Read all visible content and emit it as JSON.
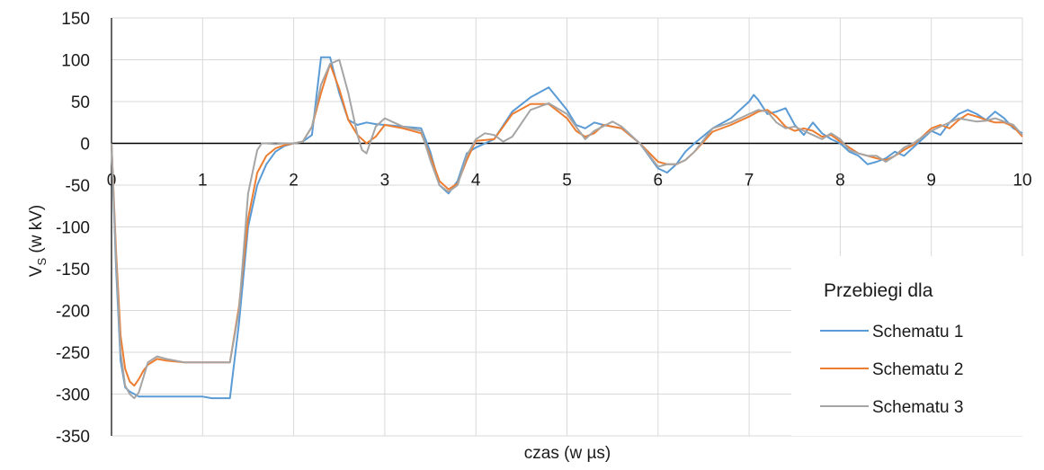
{
  "chart_data": {
    "type": "line",
    "title": "",
    "xlabel": "czas (w µs)",
    "ylabel_main": "V",
    "ylabel_sub": "S",
    "ylabel_rest": " (w kV)",
    "xlim": [
      0,
      10
    ],
    "ylim": [
      -350,
      150
    ],
    "x_ticks": [
      0,
      1,
      2,
      3,
      4,
      5,
      6,
      7,
      8,
      9,
      10
    ],
    "y_ticks": [
      150,
      100,
      50,
      0,
      -50,
      -100,
      -150,
      -200,
      -250,
      -300,
      -350
    ],
    "grid": true,
    "legend": {
      "title": "Przebiegi dla",
      "placement": "bottom-right"
    },
    "series": [
      {
        "name": "Schematu 1",
        "color": "#5b9bd5",
        "x": [
          0,
          0.05,
          0.1,
          0.15,
          0.2,
          0.3,
          0.5,
          0.8,
          1.0,
          1.1,
          1.2,
          1.3,
          1.4,
          1.5,
          1.6,
          1.7,
          1.8,
          1.9,
          2.0,
          2.1,
          2.2,
          2.3,
          2.4,
          2.5,
          2.6,
          2.7,
          2.8,
          2.9,
          3.0,
          3.2,
          3.4,
          3.5,
          3.6,
          3.7,
          3.8,
          3.9,
          4.0,
          4.2,
          4.4,
          4.6,
          4.8,
          5.0,
          5.1,
          5.2,
          5.3,
          5.4,
          5.6,
          5.8,
          6.0,
          6.1,
          6.2,
          6.3,
          6.4,
          6.6,
          6.8,
          7.0,
          7.05,
          7.1,
          7.2,
          7.3,
          7.4,
          7.5,
          7.6,
          7.7,
          7.8,
          7.9,
          8.0,
          8.1,
          8.2,
          8.3,
          8.4,
          8.5,
          8.6,
          8.7,
          8.8,
          9.0,
          9.1,
          9.2,
          9.3,
          9.4,
          9.5,
          9.6,
          9.7,
          9.8,
          9.9,
          10.0
        ],
        "y": [
          0,
          -150,
          -260,
          -292,
          -297,
          -303,
          -303,
          -303,
          -303,
          -305,
          -305,
          -305,
          -215,
          -100,
          -50,
          -25,
          -10,
          -3,
          0,
          2,
          10,
          103,
          103,
          60,
          28,
          22,
          25,
          23,
          22,
          20,
          18,
          -10,
          -50,
          -60,
          -45,
          -12,
          -5,
          5,
          38,
          55,
          67,
          40,
          22,
          18,
          25,
          22,
          18,
          0,
          -30,
          -35,
          -25,
          -10,
          0,
          18,
          30,
          50,
          58,
          52,
          35,
          38,
          42,
          22,
          10,
          25,
          12,
          5,
          0,
          -10,
          -15,
          -25,
          -22,
          -18,
          -10,
          -15,
          -5,
          15,
          10,
          25,
          35,
          40,
          35,
          28,
          38,
          30,
          18,
          12
        ]
      },
      {
        "name": "Schematu 2",
        "color": "#ed7d31",
        "x": [
          0,
          0.05,
          0.1,
          0.15,
          0.2,
          0.25,
          0.3,
          0.35,
          0.4,
          0.5,
          0.6,
          0.8,
          1.0,
          1.2,
          1.3,
          1.4,
          1.5,
          1.6,
          1.7,
          1.8,
          1.9,
          2.0,
          2.1,
          2.2,
          2.3,
          2.4,
          2.5,
          2.6,
          2.7,
          2.8,
          2.9,
          3.0,
          3.2,
          3.4,
          3.5,
          3.6,
          3.7,
          3.8,
          3.9,
          4.0,
          4.2,
          4.4,
          4.6,
          4.8,
          5.0,
          5.1,
          5.2,
          5.3,
          5.4,
          5.6,
          5.8,
          6.0,
          6.1,
          6.2,
          6.3,
          6.4,
          6.6,
          6.8,
          7.0,
          7.1,
          7.2,
          7.3,
          7.4,
          7.5,
          7.6,
          7.7,
          7.8,
          7.9,
          8.0,
          8.1,
          8.2,
          8.3,
          8.4,
          8.5,
          8.6,
          8.7,
          8.8,
          9.0,
          9.1,
          9.2,
          9.3,
          9.4,
          9.5,
          9.6,
          9.7,
          9.8,
          9.9,
          10.0
        ],
        "y": [
          0,
          -130,
          -230,
          -270,
          -285,
          -290,
          -282,
          -272,
          -265,
          -258,
          -260,
          -262,
          -262,
          -262,
          -262,
          -195,
          -90,
          -35,
          -15,
          -6,
          -2,
          0,
          2,
          20,
          60,
          95,
          65,
          28,
          10,
          0,
          8,
          22,
          18,
          12,
          -15,
          -45,
          -55,
          -48,
          -20,
          3,
          5,
          35,
          47,
          47,
          30,
          15,
          8,
          12,
          22,
          18,
          0,
          -22,
          -25,
          -25,
          -20,
          -10,
          14,
          22,
          32,
          38,
          40,
          32,
          20,
          15,
          18,
          15,
          8,
          10,
          2,
          -5,
          -12,
          -15,
          -18,
          -20,
          -15,
          -8,
          -2,
          18,
          22,
          18,
          28,
          35,
          32,
          28,
          25,
          25,
          20,
          8
        ]
      },
      {
        "name": "Schematu 3",
        "color": "#a5a5a5",
        "x": [
          0,
          0.05,
          0.1,
          0.15,
          0.2,
          0.25,
          0.3,
          0.35,
          0.4,
          0.5,
          0.6,
          0.8,
          1.0,
          1.2,
          1.3,
          1.4,
          1.5,
          1.6,
          1.65,
          1.7,
          1.8,
          1.9,
          2.0,
          2.1,
          2.2,
          2.3,
          2.4,
          2.5,
          2.6,
          2.7,
          2.75,
          2.8,
          2.9,
          3.0,
          3.1,
          3.2,
          3.4,
          3.5,
          3.6,
          3.7,
          3.8,
          3.9,
          4.0,
          4.1,
          4.2,
          4.3,
          4.4,
          4.6,
          4.8,
          5.0,
          5.1,
          5.2,
          5.3,
          5.5,
          5.6,
          5.8,
          6.0,
          6.1,
          6.2,
          6.3,
          6.4,
          6.6,
          6.8,
          7.0,
          7.1,
          7.2,
          7.3,
          7.4,
          7.5,
          7.6,
          7.7,
          7.8,
          7.9,
          8.0,
          8.1,
          8.2,
          8.3,
          8.4,
          8.5,
          8.6,
          8.7,
          8.8,
          9.0,
          9.1,
          9.2,
          9.3,
          9.4,
          9.5,
          9.6,
          9.7,
          9.8,
          9.9,
          10.0
        ],
        "y": [
          0,
          -140,
          -250,
          -290,
          -300,
          -305,
          -298,
          -280,
          -262,
          -255,
          -258,
          -262,
          -262,
          -262,
          -262,
          -200,
          -60,
          -8,
          0,
          0,
          -1,
          0,
          0,
          2,
          20,
          70,
          95,
          100,
          60,
          10,
          -8,
          -12,
          20,
          30,
          25,
          20,
          15,
          -20,
          -50,
          -58,
          -50,
          -15,
          5,
          12,
          10,
          2,
          8,
          40,
          48,
          35,
          20,
          5,
          15,
          26,
          20,
          0,
          -28,
          -25,
          -25,
          -20,
          -10,
          18,
          25,
          35,
          40,
          38,
          25,
          18,
          20,
          15,
          10,
          5,
          12,
          5,
          -8,
          -12,
          -15,
          -15,
          -22,
          -15,
          -5,
          0,
          15,
          20,
          25,
          30,
          28,
          26,
          27,
          30,
          26,
          22,
          10
        ]
      }
    ]
  }
}
